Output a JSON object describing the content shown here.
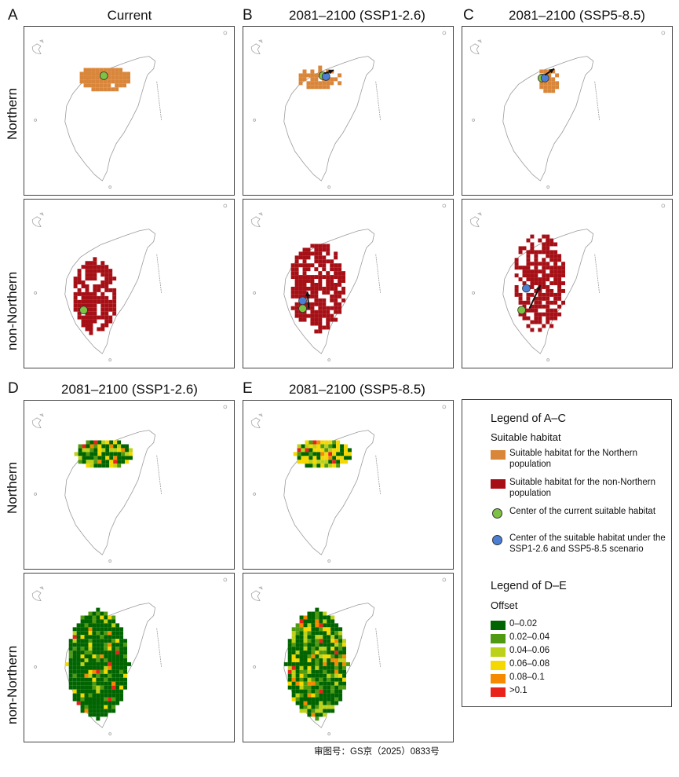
{
  "panels": {
    "A": {
      "letter": "A",
      "title": "Current"
    },
    "B": {
      "letter": "B",
      "title": "2081–2100 (SSP1-2.6)"
    },
    "C": {
      "letter": "C",
      "title": "2081–2100 (SSP5-8.5)"
    },
    "D": {
      "letter": "D",
      "title": "2081–2100 (SSP1-2.6)"
    },
    "E": {
      "letter": "E",
      "title": "2081–2100 (SSP5-8.5)"
    }
  },
  "row_labels": {
    "northern": "Northern",
    "non_northern": "non-Northern"
  },
  "legend_ac": {
    "title": "Legend of A–C",
    "subtitle": "Suitable habitat",
    "items": [
      {
        "label": "Suitable habitat for the Northern population",
        "color": "#d9863a"
      },
      {
        "label": "Suitable habitat for the non-Northern population",
        "color": "#a50f15"
      },
      {
        "label": "Center of the current suitable habitat",
        "color": "#7dc242"
      },
      {
        "label": "Center of the suitable habitat under the SSP1-2.6 and SSP5-8.5 scenario",
        "color": "#4a7fd4"
      }
    ]
  },
  "legend_de": {
    "title": "Legend of D–E",
    "subtitle": "Offset",
    "items": [
      {
        "label": "0–0.02",
        "color": "#006400"
      },
      {
        "label": "0.02–0.04",
        "color": "#4f9a10"
      },
      {
        "label": "0.04–0.06",
        "color": "#bcd21a"
      },
      {
        "label": "0.06–0.08",
        "color": "#f5d800"
      },
      {
        "label": "0.08–0.1",
        "color": "#f58a00"
      },
      {
        "label": ">0.1",
        "color": "#e8231a"
      }
    ]
  },
  "caption": "审图号：GS京（2025）0833号"
}
